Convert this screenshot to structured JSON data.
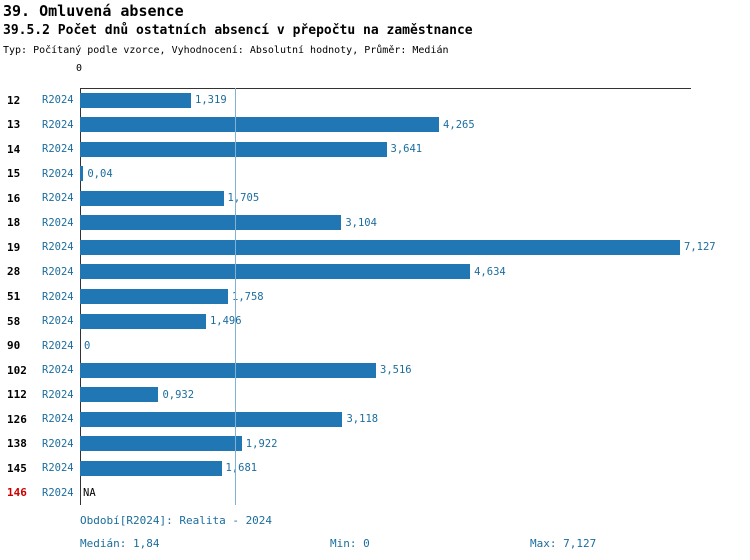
{
  "chart_data": {
    "type": "bar",
    "orientation": "horizontal",
    "title": "39. Omluvená absence",
    "subtitle": "39.5.2 Počet dnů ostatních absencí v přepočtu na zaměstnance",
    "meta": "Typ: Počítaný podle vzorce, Vyhodnocení: Absolutní hodnoty, Průměr: Medián",
    "series_name": "R2024",
    "axis": {
      "zero_label": "0",
      "xmin": 0,
      "xmax": 7.127
    },
    "median_value": 1.84,
    "legend_position": "none",
    "grid": false,
    "categories": [
      "12",
      "13",
      "14",
      "15",
      "16",
      "18",
      "19",
      "28",
      "51",
      "58",
      "90",
      "102",
      "112",
      "126",
      "138",
      "145",
      "146"
    ],
    "rows": [
      {
        "id": "12",
        "period": "R2024",
        "value": 1.319,
        "label": "1,319"
      },
      {
        "id": "13",
        "period": "R2024",
        "value": 4.265,
        "label": "4,265"
      },
      {
        "id": "14",
        "period": "R2024",
        "value": 3.641,
        "label": "3,641"
      },
      {
        "id": "15",
        "period": "R2024",
        "value": 0.04,
        "label": "0,04"
      },
      {
        "id": "16",
        "period": "R2024",
        "value": 1.705,
        "label": "1,705"
      },
      {
        "id": "18",
        "period": "R2024",
        "value": 3.104,
        "label": "3,104"
      },
      {
        "id": "19",
        "period": "R2024",
        "value": 7.127,
        "label": "7,127"
      },
      {
        "id": "28",
        "period": "R2024",
        "value": 4.634,
        "label": "4,634"
      },
      {
        "id": "51",
        "period": "R2024",
        "value": 1.758,
        "label": "1,758"
      },
      {
        "id": "58",
        "period": "R2024",
        "value": 1.496,
        "label": "1,496"
      },
      {
        "id": "90",
        "period": "R2024",
        "value": 0,
        "label": "0"
      },
      {
        "id": "102",
        "period": "R2024",
        "value": 3.516,
        "label": "3,516"
      },
      {
        "id": "112",
        "period": "R2024",
        "value": 0.932,
        "label": "0,932"
      },
      {
        "id": "126",
        "period": "R2024",
        "value": 3.118,
        "label": "3,118"
      },
      {
        "id": "138",
        "period": "R2024",
        "value": 1.922,
        "label": "1,922"
      },
      {
        "id": "145",
        "period": "R2024",
        "value": 1.681,
        "label": "1,681"
      },
      {
        "id": "146",
        "period": "R2024",
        "value": null,
        "label": "NA",
        "na": true,
        "highlight": true
      }
    ],
    "footer": {
      "period": "Období[R2024]: Realita - 2024",
      "median": "Medián: 1,84",
      "min": "Min: 0",
      "max": "Max: 7,127"
    },
    "colors": {
      "bar": "#2077b4",
      "blue_text": "#1b6d9e",
      "median_line": "#7fb3d5",
      "axis": "#333333",
      "highlight_red": "#cc0000"
    }
  }
}
